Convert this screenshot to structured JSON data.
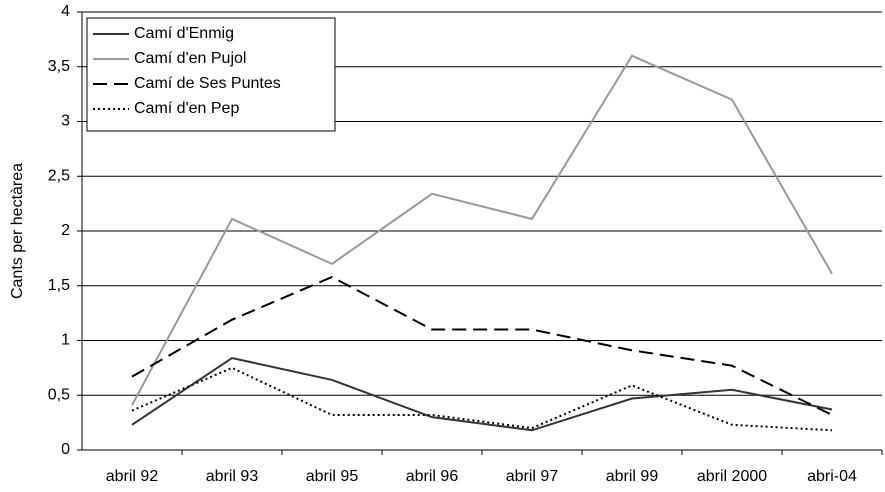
{
  "chart_data": {
    "type": "line",
    "y_label": "Cants per hectàrea",
    "categories": [
      "abril 92",
      "abril 93",
      "abril 95",
      "abril 96",
      "abril 97",
      "abril 99",
      "abril 2000",
      "abri-04"
    ],
    "series": [
      {
        "name": "Camí d'Enmig",
        "color": "#333333",
        "dash": "solid",
        "values": [
          0.23,
          0.84,
          0.64,
          0.3,
          0.18,
          0.47,
          0.55,
          0.37
        ]
      },
      {
        "name": "Camí d'en Pujol",
        "color": "#999999",
        "dash": "solid",
        "values": [
          0.41,
          2.11,
          1.7,
          2.34,
          2.11,
          3.6,
          3.2,
          1.61
        ]
      },
      {
        "name": "Camí de Ses Puntes",
        "color": "#000000",
        "dash": "dashed",
        "values": [
          0.67,
          1.19,
          1.58,
          1.1,
          1.1,
          0.91,
          0.77,
          0.32
        ]
      },
      {
        "name": "Camí d'en Pep",
        "color": "#000000",
        "dash": "dotted",
        "values": [
          0.36,
          0.75,
          0.32,
          0.32,
          0.2,
          0.59,
          0.23,
          0.18
        ]
      }
    ],
    "ylim": [
      0,
      4
    ],
    "yticks": [
      0,
      {
        "value": 0.5,
        "label": "0,5"
      },
      1,
      {
        "value": 1.5,
        "label": "1,5"
      },
      2,
      {
        "value": 2.5,
        "label": "2,5"
      },
      3,
      {
        "value": 3.5,
        "label": "3,5"
      },
      4
    ],
    "grid": true,
    "legend": "top-left"
  }
}
